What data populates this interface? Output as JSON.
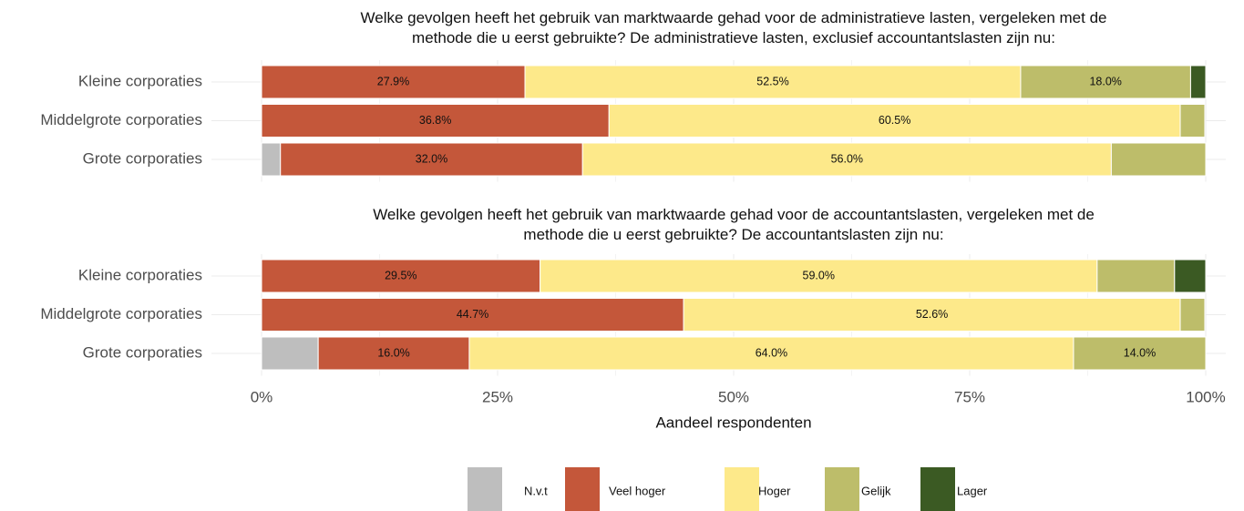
{
  "chart_data": [
    {
      "type": "bar",
      "title": "Welke gevolgen heeft het gebruik van marktwaarde gehad voor de administratieve lasten, vergeleken met de\nmethode die u eerst gebruikte? De administratieve lasten, exclusief accountantslasten zijn nu:",
      "categories": [
        "Kleine corporaties",
        "Middelgrote corporaties",
        "Grote corporaties"
      ],
      "series": [
        {
          "name": "N.v.t",
          "color": "#bebebe",
          "values": [
            0,
            0,
            2.0
          ],
          "value_labels": [
            null,
            null,
            null
          ]
        },
        {
          "name": "Veel hoger",
          "color": "#c4573a",
          "values": [
            27.9,
            36.8,
            32.0
          ],
          "value_labels": [
            "27.9%",
            "36.8%",
            "32.0%"
          ]
        },
        {
          "name": "Hoger",
          "color": "#fde98a",
          "values": [
            52.5,
            60.5,
            56.0
          ],
          "value_labels": [
            "52.5%",
            "60.5%",
            "56.0%"
          ]
        },
        {
          "name": "Gelijk",
          "color": "#bdbd6a",
          "values": [
            18.0,
            2.6,
            10.0
          ],
          "value_labels": [
            "18.0%",
            null,
            null
          ]
        },
        {
          "name": "Lager",
          "color": "#3b5a23",
          "values": [
            1.6,
            0,
            0
          ],
          "value_labels": [
            null,
            null,
            null
          ]
        }
      ]
    },
    {
      "type": "bar",
      "title": "Welke gevolgen heeft het gebruik van marktwaarde gehad voor de accountantslasten, vergeleken met de\nmethode die u eerst gebruikte? De accountantslasten zijn nu:",
      "categories": [
        "Kleine corporaties",
        "Middelgrote corporaties",
        "Grote corporaties"
      ],
      "series": [
        {
          "color": "#bebebe",
          "values": [
            0,
            0,
            6.0
          ],
          "value_labels": [
            null,
            null,
            null
          ]
        },
        {
          "color": "#c4573a",
          "values": [
            29.5,
            44.7,
            16.0
          ],
          "value_labels": [
            "29.5%",
            "44.7%",
            "16.0%"
          ]
        },
        {
          "color": "#fde98a",
          "values": [
            59.0,
            52.6,
            64.0
          ],
          "value_labels": [
            "59.0%",
            "52.6%",
            "64.0%"
          ]
        },
        {
          "color": "#bdbd6a",
          "values": [
            8.2,
            2.6,
            14.0
          ],
          "value_labels": [
            null,
            null,
            "14.0%"
          ]
        },
        {
          "color": "#3b5a23",
          "values": [
            3.3,
            0,
            0
          ],
          "value_labels": [
            null,
            null,
            null
          ]
        }
      ],
      "xlabel": "Aandeel respondenten",
      "xlim": [
        0,
        100
      ],
      "xticks": [
        {
          "value": 0,
          "label": "0%"
        },
        {
          "value": 25,
          "label": "25%"
        },
        {
          "value": 50,
          "label": "50%"
        },
        {
          "value": 75,
          "label": "75%"
        },
        {
          "value": 100,
          "label": "100%"
        }
      ],
      "grid": true
    }
  ]
}
